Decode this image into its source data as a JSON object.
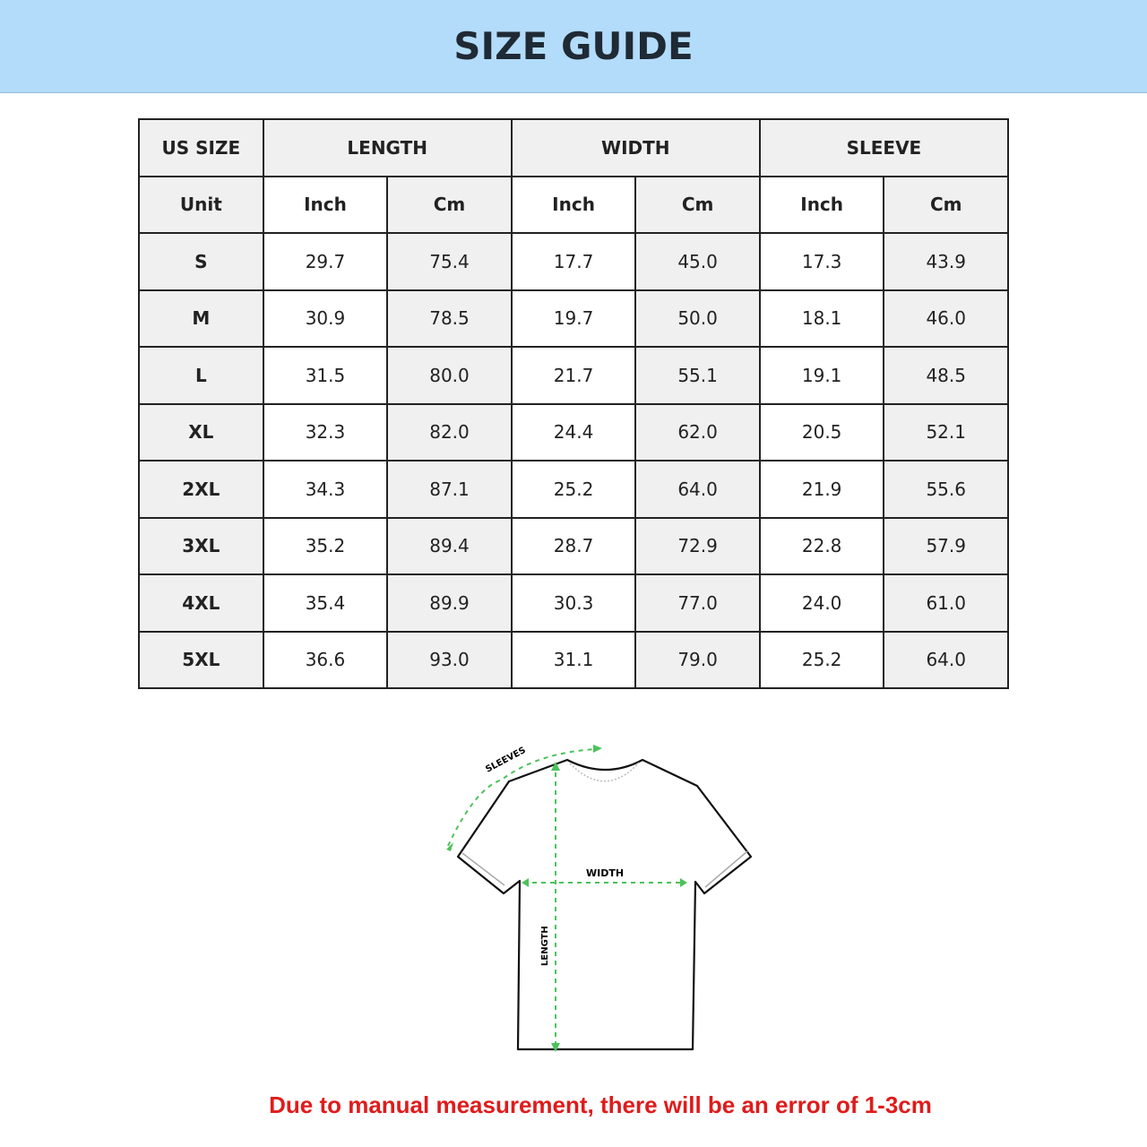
{
  "title": "SIZE GUIDE",
  "table": {
    "group_headers": [
      "US SIZE",
      "LENGTH",
      "WIDTH",
      "SLEEVE"
    ],
    "unit_row": [
      "Unit",
      "Inch",
      "Cm",
      "Inch",
      "Cm",
      "Inch",
      "Cm"
    ],
    "rows": [
      [
        "S",
        "29.7",
        "75.4",
        "17.7",
        "45.0",
        "17.3",
        "43.9"
      ],
      [
        "M",
        "30.9",
        "78.5",
        "19.7",
        "50.0",
        "18.1",
        "46.0"
      ],
      [
        "L",
        "31.5",
        "80.0",
        "21.7",
        "55.1",
        "19.1",
        "48.5"
      ],
      [
        "XL",
        "32.3",
        "82.0",
        "24.4",
        "62.0",
        "20.5",
        "52.1"
      ],
      [
        "2XL",
        "34.3",
        "87.1",
        "25.2",
        "64.0",
        "21.9",
        "55.6"
      ],
      [
        "3XL",
        "35.2",
        "89.4",
        "28.7",
        "72.9",
        "22.8",
        "57.9"
      ],
      [
        "4XL",
        "35.4",
        "89.9",
        "30.3",
        "77.0",
        "24.0",
        "61.0"
      ],
      [
        "5XL",
        "36.6",
        "93.0",
        "31.1",
        "79.0",
        "25.2",
        "64.0"
      ]
    ]
  },
  "diagram": {
    "sleeves": "SLEEVES",
    "width": "WIDTH",
    "length": "LENGTH",
    "arrow_color": "#4cc25a"
  },
  "note": "Due to manual measurement, there will be an error of 1-3cm",
  "colors": {
    "banner": "#b3dcfa",
    "note": "#e01b1b"
  }
}
